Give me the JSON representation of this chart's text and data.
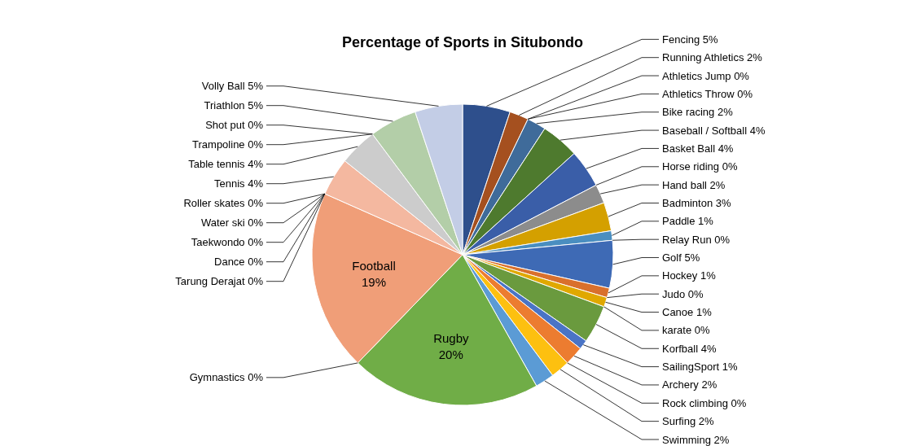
{
  "chart_data": {
    "type": "pie",
    "title": "Percentage of Sports in Situbondo",
    "categories": [
      "Fencing",
      "Running Athletics",
      "Athletics Jump",
      "Athletics Throw",
      "Bike racing",
      "Baseball / Softball",
      "Basket Ball",
      "Horse riding",
      "Hand ball",
      "Badminton",
      "Paddle",
      "Relay Run",
      "Golf",
      "Hockey",
      "Judo",
      "Canoe",
      "karate",
      "Korfball",
      "SailingSport",
      "Archery",
      "Rock climbing",
      "Surfing",
      "Swimming",
      "Rugby",
      "Gymnastics",
      "Football",
      "Roller skates",
      "Water ski",
      "Taekwondo",
      "Dance",
      "Tarung Derajat",
      "Tennis",
      "Table tennis",
      "Shot put",
      "Trampoline",
      "Triathlon",
      "Volly Ball"
    ],
    "values": [
      5,
      2,
      0,
      0,
      2,
      4,
      4,
      0,
      2,
      3,
      1,
      0,
      5,
      1,
      0,
      1,
      0,
      4,
      1,
      2,
      0,
      2,
      2,
      20,
      0,
      19,
      0,
      0,
      0,
      0,
      0,
      4,
      4,
      0,
      0,
      5,
      5
    ],
    "value_labels": [
      "5%",
      "2%",
      "0%",
      "0%",
      "2%",
      "4%",
      "4%",
      "0%",
      "2%",
      "3%",
      "1%",
      "0%",
      "5%",
      "1%",
      "0%",
      "1%",
      "0%",
      "4%",
      "1%",
      "2%",
      "0%",
      "2%",
      "2%",
      "20%",
      "0%",
      "19%",
      "0%",
      "0%",
      "0%",
      "0%",
      "0%",
      "4%",
      "4%",
      "0%",
      "0%",
      "5%",
      "5%"
    ],
    "colors": [
      "#2e4f8c",
      "#a5501f",
      "#7f7f7f",
      "#c09000",
      "#3f6b9a",
      "#4e7a2e",
      "#3a5ea8",
      "#d9702c",
      "#8c8c8c",
      "#d4a000",
      "#4a8ec0",
      "#6a9a3e",
      "#3e6ab5",
      "#d9702c",
      "#a5a5a5",
      "#e0a800",
      "#5b9bd5",
      "#6a9a3e",
      "#4a74c6",
      "#ec7c30",
      "#a5a5a5",
      "#fdc010",
      "#5b9bd5",
      "#70ad47",
      "#5b7fc6",
      "#f09e78",
      "#a5a5a5",
      "#ffc000",
      "#5b9bd5",
      "#70ad47",
      "#8faadc",
      "#f4b8a0",
      "#cccccc",
      "#f8cbad",
      "#a9c4e6",
      "#b3cea8",
      "#c3cde6"
    ]
  }
}
